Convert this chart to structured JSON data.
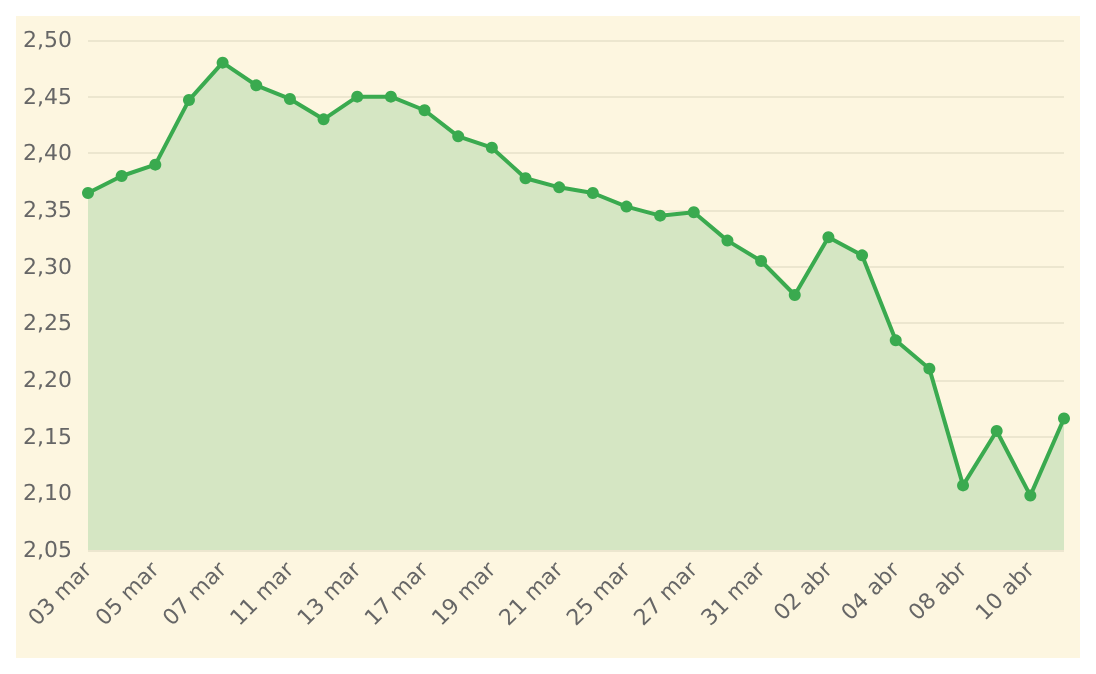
{
  "chart_data": {
    "type": "area",
    "categories": [
      "03 mar",
      null,
      "05 mar",
      null,
      "07 mar",
      null,
      "11 mar",
      null,
      "13 mar",
      null,
      "17 mar",
      null,
      "19 mar",
      null,
      "21 mar",
      null,
      "25 mar",
      null,
      "27 mar",
      null,
      "31 mar",
      null,
      "02 abr",
      null,
      "04 abr",
      null,
      "08 abr",
      null,
      "10 abr",
      null
    ],
    "series": [
      {
        "color": "#3aaa4f",
        "values": [
          2.365,
          2.38,
          2.39,
          2.447,
          2.48,
          2.46,
          2.448,
          2.43,
          2.45,
          2.45,
          2.438,
          2.415,
          2.405,
          2.378,
          2.37,
          2.365,
          2.353,
          2.345,
          2.348,
          2.323,
          2.305,
          2.275,
          2.326,
          2.31,
          2.235,
          2.21,
          2.107,
          2.155,
          2.098,
          2.166
        ]
      }
    ],
    "ylim": [
      2.05,
      2.5
    ],
    "yticks": [
      {
        "value": 2.05,
        "label": "2,05"
      },
      {
        "value": 2.1,
        "label": "2,10"
      },
      {
        "value": 2.15,
        "label": "2,15"
      },
      {
        "value": 2.2,
        "label": "2,20"
      },
      {
        "value": 2.25,
        "label": "2,25"
      },
      {
        "value": 2.3,
        "label": "2,30"
      },
      {
        "value": 2.35,
        "label": "2,35"
      },
      {
        "value": 2.4,
        "label": "2,40"
      },
      {
        "value": 2.45,
        "label": "2,45"
      },
      {
        "value": 2.5,
        "label": "2,50"
      }
    ],
    "grid": "y",
    "marker": "circle",
    "line_style": "solid"
  }
}
